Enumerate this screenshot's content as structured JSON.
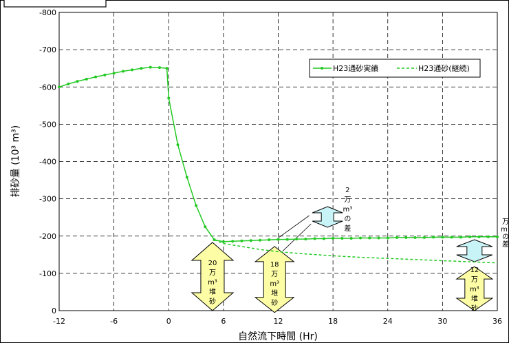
{
  "chart_data": {
    "type": "line",
    "title": "",
    "xlabel": "自然流下時間 (Hr)",
    "ylabel": "排砂量 (10³ m³)",
    "xlim": [
      -12,
      36
    ],
    "ylim": [
      0,
      -800
    ],
    "x_ticks": [
      "-12",
      "-6",
      "0",
      "6",
      "12",
      "18",
      "24",
      "30",
      "36"
    ],
    "y_ticks": [
      "0",
      "-100",
      "-200",
      "-300",
      "-400",
      "-500",
      "-600",
      "-700",
      "-800"
    ],
    "grid": true,
    "legend_position": "top-right",
    "series": [
      {
        "name": "H23通砂実績",
        "style": "solid-with-markers",
        "color": "#22c922",
        "x": [
          -12,
          -11,
          -10,
          -9,
          -8,
          -7,
          -6,
          -5,
          -4,
          -3,
          -2,
          -1,
          -0.2,
          0,
          1,
          2,
          3,
          4,
          5,
          6,
          7,
          8,
          9,
          10,
          11,
          12,
          13,
          14,
          15,
          16,
          17,
          18,
          19,
          20,
          21,
          22,
          23,
          24,
          25,
          26,
          27,
          28,
          29,
          30,
          31,
          32,
          33,
          34,
          35,
          36
        ],
        "y": [
          -600,
          -608,
          -615,
          -621,
          -627,
          -632,
          -637,
          -642,
          -646,
          -650,
          -653,
          -652,
          -650,
          -570,
          -445,
          -358,
          -282,
          -225,
          -190,
          -185,
          -186,
          -187,
          -188,
          -189,
          -190,
          -191,
          -191,
          -192,
          -192,
          -193,
          -193,
          -194,
          -194,
          -194,
          -195,
          -195,
          -195,
          -195,
          -196,
          -196,
          -196,
          -196,
          -197,
          -197,
          -197,
          -197,
          -198,
          -198,
          -198,
          -198
        ]
      },
      {
        "name": "H23通砂(継続)",
        "style": "dashed",
        "color": "#22c922",
        "x": [
          5,
          6,
          8,
          10,
          12,
          15,
          18,
          21,
          24,
          27,
          30,
          33,
          36
        ],
        "y": [
          -190,
          -180,
          -172,
          -164,
          -158,
          -152,
          -147,
          -143,
          -140,
          -137,
          -134,
          -131,
          -128
        ]
      }
    ],
    "annotations": {
      "diff_label": [
        "2",
        "万",
        "m³",
        "の",
        "差"
      ],
      "deposit_6h": [
        "20",
        "万",
        "m³",
        "堆",
        "砂"
      ],
      "deposit_12h": [
        "18",
        "万",
        "m³",
        "堆",
        "砂"
      ],
      "deposit_36h": [
        "12",
        "万",
        "m³",
        "堆",
        "砂"
      ],
      "diff_label_right": [
        "万",
        "m³",
        "の",
        "差"
      ]
    }
  }
}
